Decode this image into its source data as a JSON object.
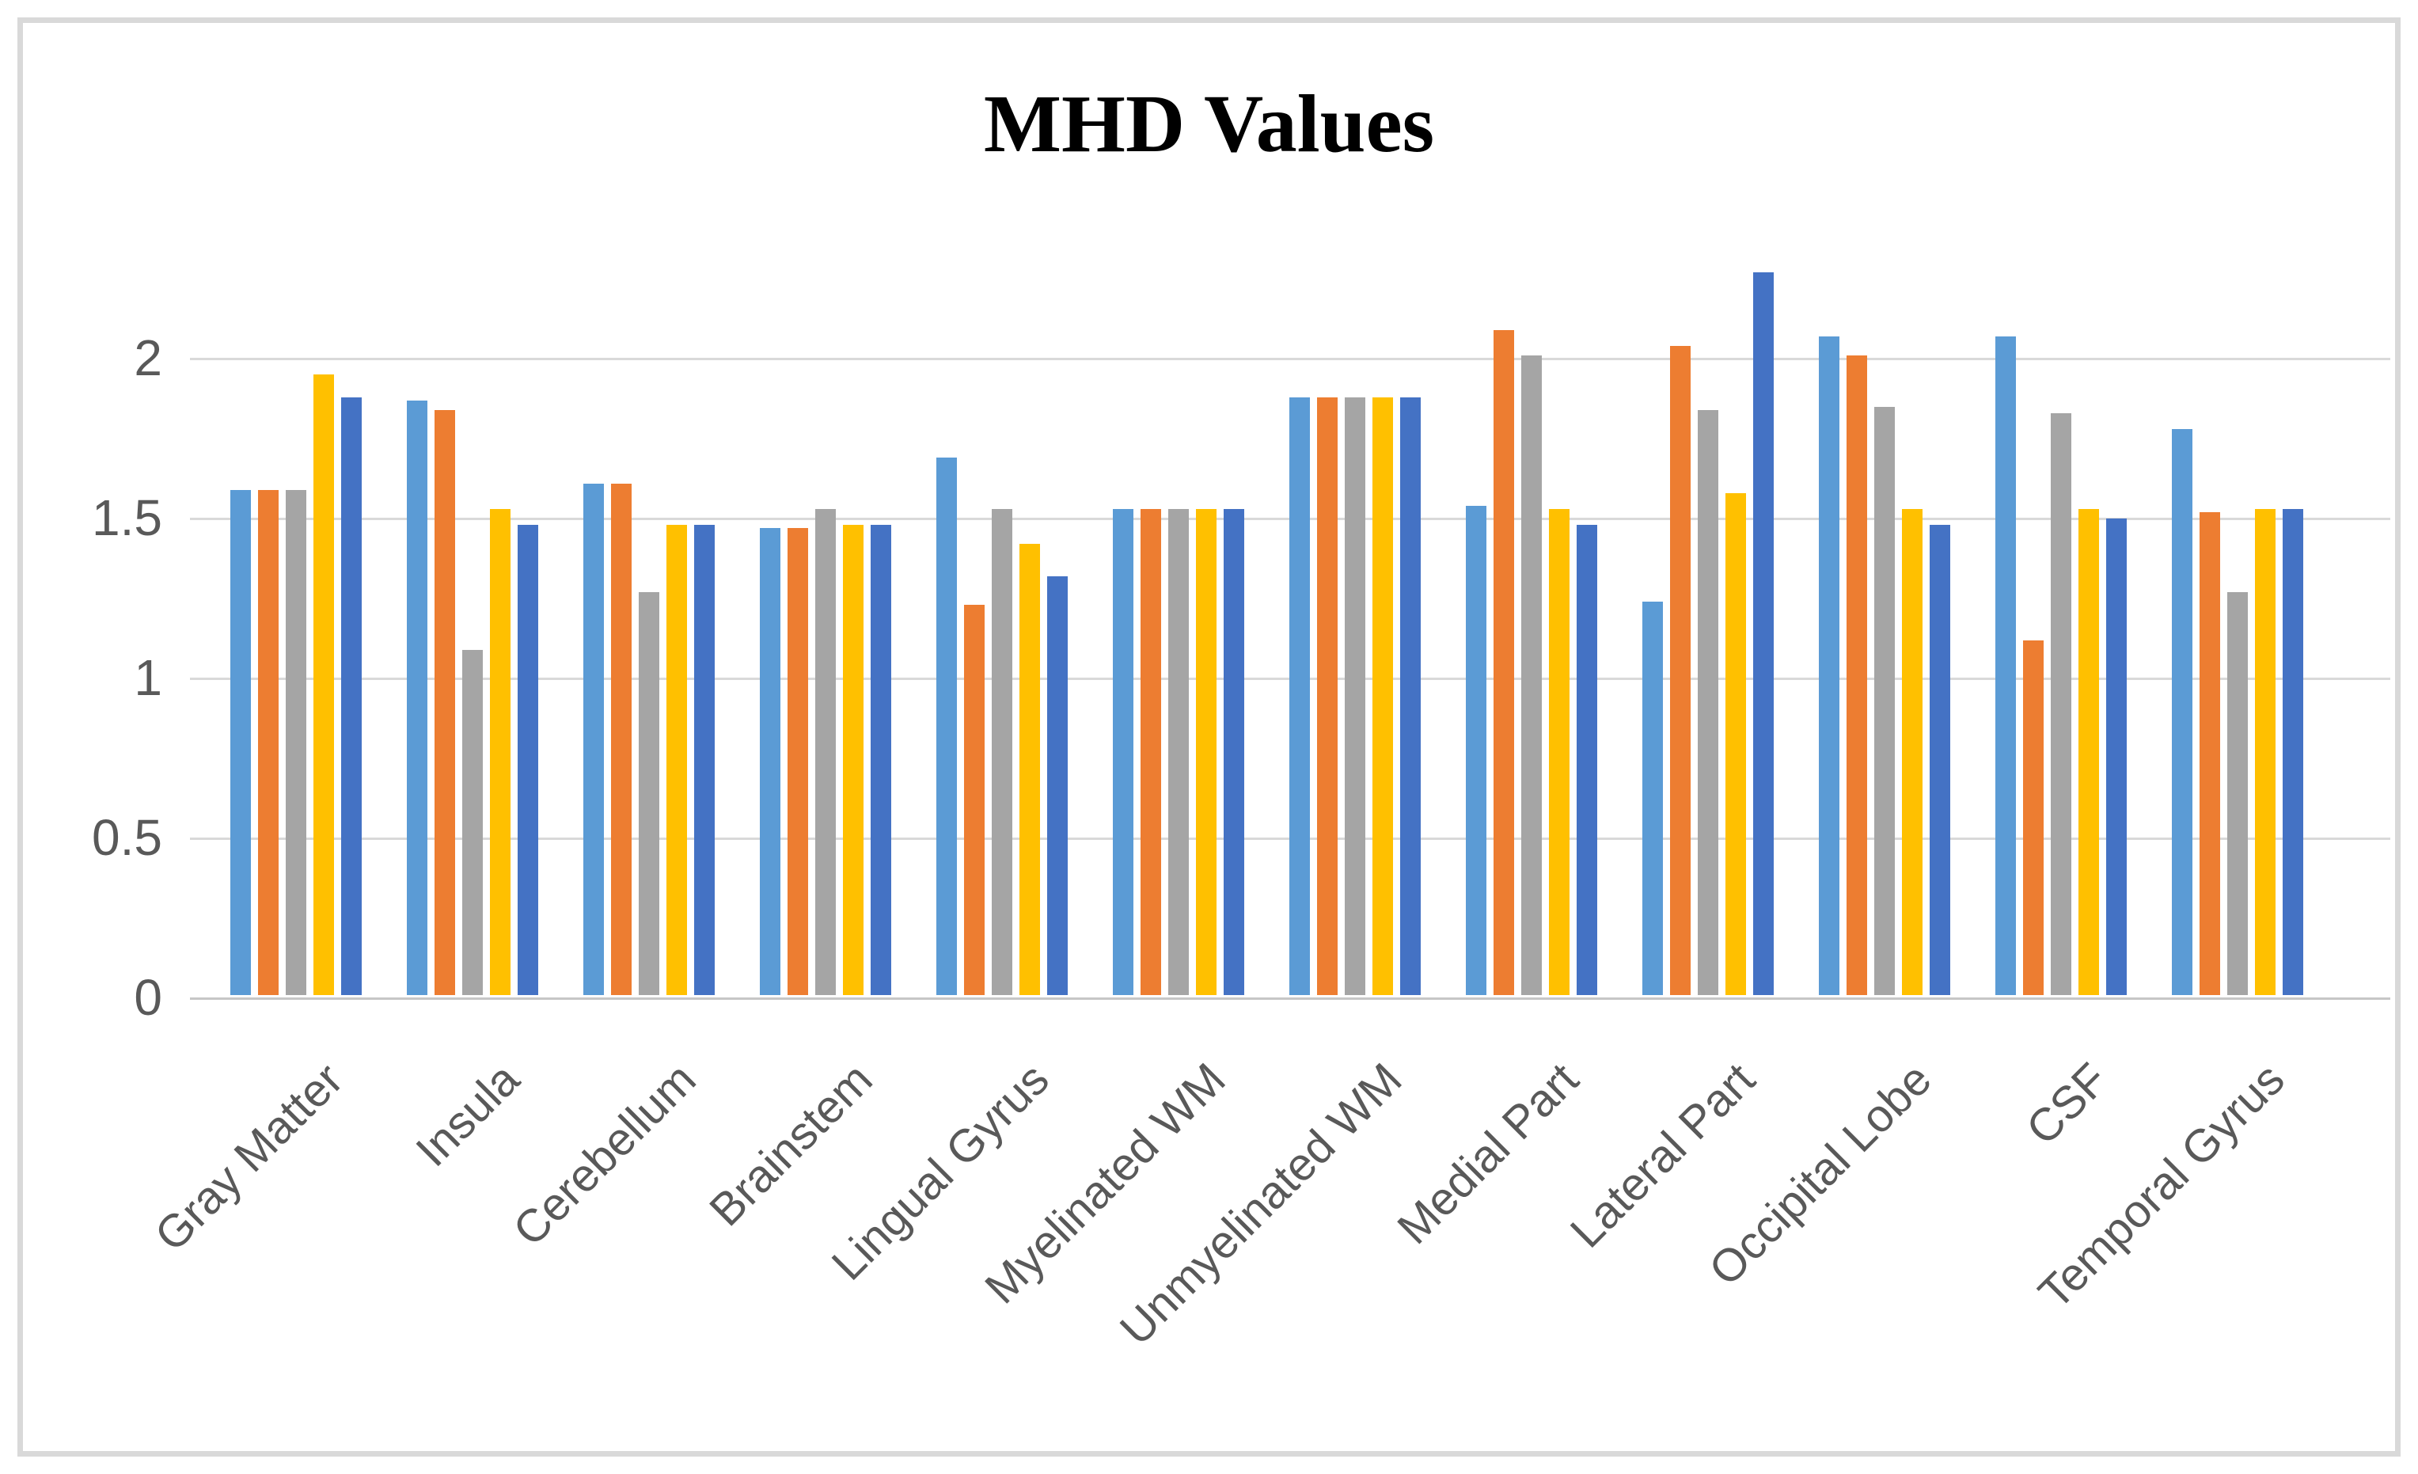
{
  "page": {
    "title": "MHD Values"
  },
  "chart_data": {
    "type": "bar",
    "title": "MHD Values",
    "xlabel": "",
    "ylabel": "",
    "ylim": [
      0,
      2.3
    ],
    "yticks": [
      0,
      0.5,
      1,
      1.5,
      2
    ],
    "ytick_labels": [
      "0",
      "0.5",
      "1",
      "1.5",
      "2"
    ],
    "grid": true,
    "legend": "none",
    "categories": [
      "Gray Matter",
      "Insula",
      "Cerebellum",
      "Brainstem",
      "Lingual Gyrus",
      "Myelinated WM",
      "Unmyelinated WM",
      "Medial Part",
      "Lateral Part",
      "Occipital Lobe",
      "CSF",
      "Temporal Gyrus"
    ],
    "series": [
      {
        "name": "light-blue",
        "color": "#5B9BD5",
        "values": [
          1.58,
          1.86,
          1.6,
          1.46,
          1.68,
          1.52,
          1.87,
          1.53,
          1.23,
          2.06,
          2.06,
          1.77
        ]
      },
      {
        "name": "orange",
        "color": "#ED7D31",
        "values": [
          1.58,
          1.83,
          1.6,
          1.46,
          1.22,
          1.52,
          1.87,
          2.08,
          2.03,
          2.0,
          1.11,
          1.51
        ]
      },
      {
        "name": "gray",
        "color": "#A5A5A5",
        "values": [
          1.58,
          1.08,
          1.26,
          1.52,
          1.52,
          1.52,
          1.87,
          2.0,
          1.83,
          1.84,
          1.82,
          1.26
        ]
      },
      {
        "name": "yellow",
        "color": "#FFC000",
        "values": [
          1.94,
          1.52,
          1.47,
          1.47,
          1.41,
          1.52,
          1.87,
          1.52,
          1.57,
          1.52,
          1.52,
          1.52
        ]
      },
      {
        "name": "dark-blue",
        "color": "#4472C4",
        "values": [
          1.87,
          1.47,
          1.47,
          1.47,
          1.31,
          1.52,
          1.87,
          1.47,
          2.26,
          1.47,
          1.49,
          1.52
        ]
      }
    ]
  }
}
